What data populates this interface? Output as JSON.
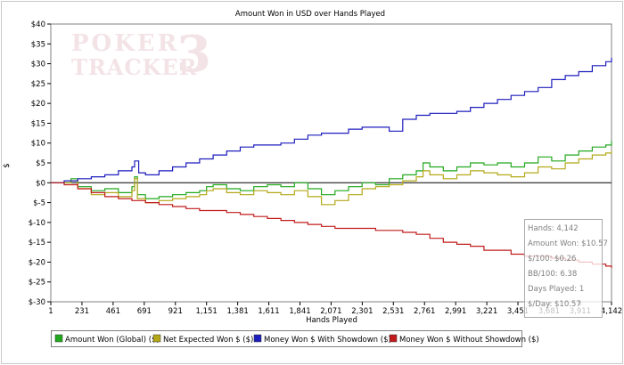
{
  "watermark": {
    "line1": "POKER",
    "line2": "TRACKER",
    "mark": "3"
  },
  "stats": [
    {
      "label": "Hands",
      "value": "4,142"
    },
    {
      "label": "Amount Won",
      "value": "$10.57"
    },
    {
      "label": "$/100",
      "value": "$0.26"
    },
    {
      "label": "BB/100",
      "value": "6.38"
    },
    {
      "label": "Days Played",
      "value": "1"
    },
    {
      "label": "$/Day",
      "value": "$10.57"
    }
  ],
  "chart_data": {
    "type": "line",
    "title": "Amount Won in USD over Hands Played",
    "xlabel": "Hands Played",
    "ylabel": "$",
    "xlim": [
      1,
      4142
    ],
    "ylim": [
      -30,
      40
    ],
    "x_ticks": [
      1,
      231,
      461,
      691,
      921,
      1151,
      1381,
      1611,
      1841,
      2071,
      2301,
      2531,
      2761,
      2991,
      3221,
      3451,
      3681,
      3911,
      4142
    ],
    "x_tick_labels": [
      "1",
      "231",
      "461",
      "691",
      "921",
      "1,151",
      "1,381",
      "1,611",
      "1,841",
      "2,071",
      "2,301",
      "2,531",
      "2,761",
      "2,991",
      "3,221",
      "3,451",
      "3,681",
      "3,911",
      "4,142"
    ],
    "y_ticks": [
      -30,
      -25,
      -20,
      -15,
      -10,
      -5,
      0,
      5,
      10,
      15,
      20,
      25,
      30,
      35,
      40
    ],
    "y_tick_labels": [
      "$-30",
      "$-25",
      "$-20",
      "$-15",
      "$-10",
      "$-5",
      "$0",
      "$5",
      "$10",
      "$15",
      "$20",
      "$25",
      "$30",
      "$35",
      "$40"
    ],
    "grid": false,
    "legend_position": "bottom",
    "series": [
      {
        "name": "Amount Won (Global) ($)",
        "color": "#22a81e",
        "x": [
          1,
          150,
          200,
          300,
          400,
          500,
          600,
          620,
          640,
          700,
          800,
          900,
          1000,
          1100,
          1151,
          1200,
          1300,
          1400,
          1500,
          1600,
          1700,
          1800,
          1900,
          2000,
          2100,
          2200,
          2300,
          2400,
          2500,
          2600,
          2700,
          2750,
          2800,
          2900,
          3000,
          3100,
          3200,
          3300,
          3400,
          3500,
          3600,
          3700,
          3800,
          3900,
          4000,
          4100,
          4142
        ],
        "y": [
          0,
          1,
          -1,
          -2,
          -1.5,
          -2.5,
          -1,
          1.5,
          -3,
          -4,
          -3.5,
          -3,
          -2.5,
          -2,
          -1,
          -0.5,
          -1.5,
          -2,
          -1,
          -0.5,
          -1,
          0,
          -1.5,
          -3,
          -2,
          -1,
          0,
          -0.5,
          1,
          2,
          3,
          5,
          4,
          3,
          4,
          5,
          4.5,
          5,
          4,
          5,
          6.5,
          5.5,
          7,
          8,
          9,
          9.5,
          10.57
        ]
      },
      {
        "name": "Net Expected Won $ ($)",
        "color": "#b4a818",
        "x": [
          1,
          150,
          200,
          300,
          400,
          500,
          600,
          620,
          640,
          700,
          800,
          900,
          1000,
          1100,
          1151,
          1200,
          1300,
          1400,
          1500,
          1600,
          1700,
          1800,
          1900,
          2000,
          2100,
          2200,
          2300,
          2400,
          2500,
          2600,
          2700,
          2750,
          2800,
          2900,
          3000,
          3100,
          3200,
          3300,
          3400,
          3500,
          3600,
          3700,
          3800,
          3900,
          4000,
          4100,
          4142
        ],
        "y": [
          0,
          0.5,
          -1.5,
          -3,
          -2.5,
          -3.5,
          -2,
          1,
          -4,
          -5,
          -4.5,
          -4,
          -3.5,
          -3,
          -2,
          -1.5,
          -2.5,
          -3,
          -2,
          -2.5,
          -3,
          -2,
          -3.5,
          -5.5,
          -4.5,
          -3,
          -1.5,
          -1,
          -0.5,
          0.5,
          1.5,
          3,
          2,
          1,
          2,
          3,
          2.5,
          2,
          1.5,
          2.5,
          4,
          3.5,
          5,
          6,
          7,
          7.5,
          8
        ]
      },
      {
        "name": "Money Won $ With Showdown ($)",
        "color": "#1d1dbd",
        "x": [
          1,
          100,
          200,
          300,
          400,
          500,
          600,
          620,
          650,
          700,
          800,
          900,
          1000,
          1100,
          1200,
          1300,
          1400,
          1500,
          1600,
          1700,
          1800,
          1900,
          2000,
          2100,
          2200,
          2300,
          2400,
          2500,
          2600,
          2700,
          2800,
          2900,
          3000,
          3100,
          3200,
          3300,
          3400,
          3500,
          3600,
          3700,
          3800,
          3900,
          4000,
          4100,
          4142
        ],
        "y": [
          0,
          0.5,
          1,
          1.5,
          2,
          3,
          4,
          5.5,
          2.5,
          2,
          3,
          4,
          5,
          6,
          7,
          8,
          9,
          9.5,
          9.5,
          10,
          11,
          12,
          12.5,
          12.5,
          13.5,
          14,
          14,
          13,
          16,
          17,
          17.5,
          17.5,
          18,
          19,
          20,
          21,
          22,
          23,
          24,
          26,
          27,
          28,
          29.5,
          30.5,
          31.5
        ]
      },
      {
        "name": "Money Won $ Without Showdown ($)",
        "color": "#c11b1b",
        "x": [
          1,
          100,
          200,
          300,
          400,
          500,
          600,
          700,
          800,
          900,
          1000,
          1100,
          1200,
          1300,
          1400,
          1500,
          1600,
          1700,
          1800,
          1900,
          2000,
          2100,
          2200,
          2300,
          2400,
          2500,
          2600,
          2700,
          2800,
          2900,
          3000,
          3100,
          3200,
          3300,
          3400,
          3500,
          3600,
          3700,
          3800,
          3900,
          4000,
          4100,
          4142
        ],
        "y": [
          0,
          -0.5,
          -1.5,
          -2.5,
          -3.5,
          -4,
          -4.5,
          -5,
          -5.5,
          -6,
          -6.5,
          -7,
          -7,
          -7.5,
          -8,
          -8.5,
          -9,
          -9.5,
          -10,
          -10.5,
          -11,
          -11.5,
          -11.5,
          -11.5,
          -12,
          -12,
          -12.5,
          -13,
          -14,
          -15,
          -15.5,
          -16,
          -17,
          -17,
          -18,
          -18.5,
          -18.5,
          -19,
          -19.5,
          -20,
          -20.5,
          -21,
          -21.5
        ]
      }
    ]
  }
}
